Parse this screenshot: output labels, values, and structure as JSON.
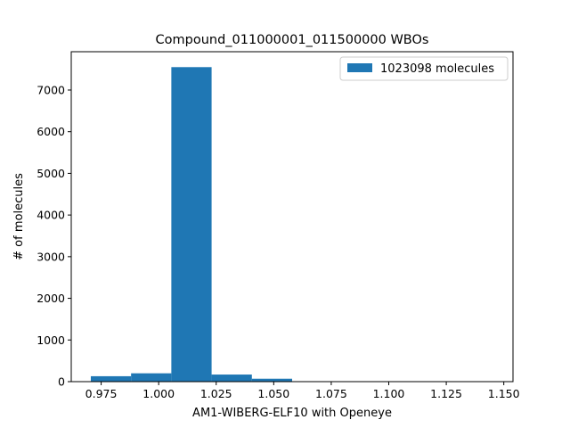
{
  "colors": {
    "bar": "#1f77b4",
    "axis": "#000000",
    "legend_border": "#cccccc",
    "background": "#ffffff"
  },
  "chart_data": {
    "type": "bar",
    "title": "Compound_011000001_011500000 WBOs",
    "xlabel": "AM1-WIBERG-ELF10 with Openeye",
    "ylabel": "# of molecules",
    "xlim": [
      0.962,
      1.154
    ],
    "ylim": [
      0,
      7920
    ],
    "x_ticks": [
      0.975,
      1.0,
      1.025,
      1.05,
      1.075,
      1.1,
      1.125,
      1.15
    ],
    "x_tick_labels": [
      "0.975",
      "1.000",
      "1.025",
      "1.050",
      "1.075",
      "1.100",
      "1.125",
      "1.150"
    ],
    "y_ticks": [
      0,
      1000,
      2000,
      3000,
      4000,
      5000,
      6000,
      7000
    ],
    "y_tick_labels": [
      "0",
      "1000",
      "2000",
      "3000",
      "4000",
      "5000",
      "6000",
      "7000"
    ],
    "legend": {
      "label": "1023098 molecules",
      "position": "top-right"
    },
    "bin_edges": [
      0.9705,
      0.988,
      1.0055,
      1.023,
      1.0405,
      1.058,
      1.0755,
      1.093,
      1.1105,
      1.128,
      1.1455
    ],
    "values": [
      130,
      200,
      7550,
      170,
      70,
      8,
      3,
      3,
      2,
      2
    ]
  }
}
